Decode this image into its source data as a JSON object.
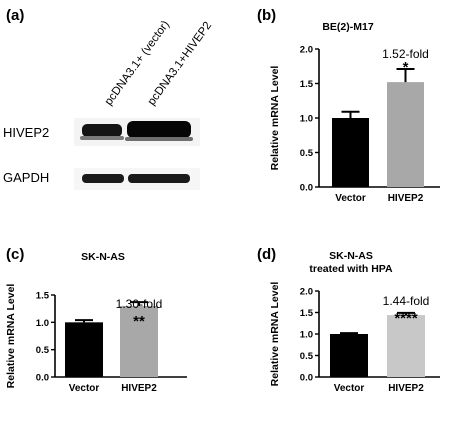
{
  "panel_a": {
    "label": "(a)",
    "lanes": [
      "pcDNA3.1+ (vector)",
      "pcDNA3.1+HIVEP2"
    ],
    "blots": [
      "HIVEP2",
      "GAPDH"
    ]
  },
  "charts": [
    {
      "panel_label": "(b)",
      "title_lines": [
        "BE(2)-M17"
      ],
      "fold_label": "1.52-fold",
      "significance": "*"
    },
    {
      "panel_label": "(c)",
      "title_lines": [
        "SK-N-AS"
      ],
      "fold_label": "1.30-fold",
      "significance": "**"
    },
    {
      "panel_label": "(d)",
      "title_lines": [
        "SK-N-AS",
        "treated with HPA"
      ],
      "fold_label": "1.44-fold",
      "significance": "****"
    }
  ],
  "chart_data": [
    {
      "type": "bar",
      "title": "BE(2)-M17",
      "categories": [
        "Vector",
        "HIVEP2"
      ],
      "values": [
        1.0,
        1.52
      ],
      "errors": [
        0.09,
        0.19
      ],
      "colors": [
        "#000000",
        "#a8a8a8"
      ],
      "xlabel": "",
      "ylabel": "Relative mRNA Level",
      "ylim": [
        0,
        2.0
      ],
      "yticks": [
        "0.0",
        "0.5",
        "1.0",
        "1.5",
        "2.0"
      ]
    },
    {
      "type": "bar",
      "title": "SK-N-AS",
      "categories": [
        "Vector",
        "HIVEP2"
      ],
      "values": [
        1.0,
        1.3
      ],
      "errors": [
        0.04,
        0.07
      ],
      "colors": [
        "#000000",
        "#a8a8a8"
      ],
      "xlabel": "",
      "ylabel": "Relative mRNA Level",
      "ylim": [
        0,
        1.5
      ],
      "yticks": [
        "0.0",
        "0.5",
        "1.0",
        "1.5"
      ]
    },
    {
      "type": "bar",
      "title": "SK-N-AS treated with HPA",
      "categories": [
        "Vector",
        "HIVEP2"
      ],
      "values": [
        1.0,
        1.44
      ],
      "errors": [
        0.02,
        0.05
      ],
      "colors": [
        "#000000",
        "#c8c8c8"
      ],
      "xlabel": "",
      "ylabel": "Relative mRNA Level",
      "ylim": [
        0,
        2.0
      ],
      "yticks": [
        "0.0",
        "0.5",
        "1.0",
        "1.5",
        "2.0"
      ]
    }
  ]
}
